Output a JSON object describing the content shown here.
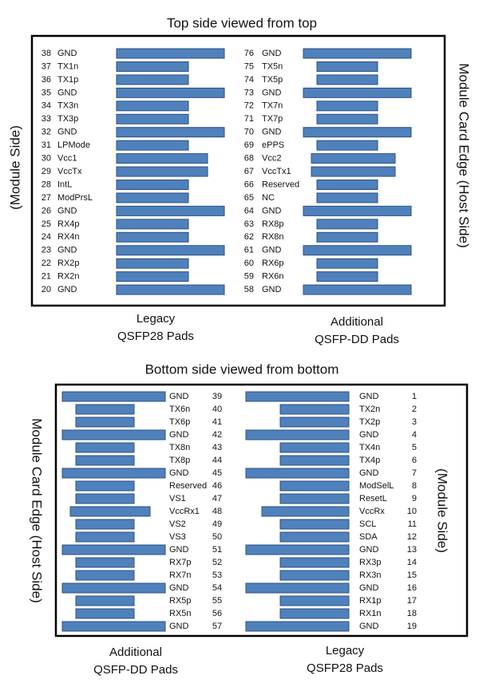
{
  "panels": [
    {
      "title": "Top side viewed from top",
      "side_labels": [
        "(Module Side)",
        "Module Card Edge (Host Side)"
      ],
      "columns": [
        {
          "caption": [
            "Legacy",
            "QSFP28 Pads"
          ],
          "pads": [
            {
              "number": 38,
              "name": "GND"
            },
            {
              "number": 37,
              "name": "TX1n"
            },
            {
              "number": 36,
              "name": "TX1p"
            },
            {
              "number": 35,
              "name": "GND"
            },
            {
              "number": 34,
              "name": "TX3n"
            },
            {
              "number": 33,
              "name": "TX3p"
            },
            {
              "number": 32,
              "name": "GND"
            },
            {
              "number": 31,
              "name": "LPMode"
            },
            {
              "number": 30,
              "name": "Vcc1"
            },
            {
              "number": 29,
              "name": "VccTx"
            },
            {
              "number": 28,
              "name": "IntL"
            },
            {
              "number": 27,
              "name": "ModPrsL"
            },
            {
              "number": 26,
              "name": "GND"
            },
            {
              "number": 25,
              "name": "RX4p"
            },
            {
              "number": 24,
              "name": "RX4n"
            },
            {
              "number": 23,
              "name": "GND"
            },
            {
              "number": 22,
              "name": "RX2p"
            },
            {
              "number": 21,
              "name": "RX2n"
            },
            {
              "number": 20,
              "name": "GND"
            }
          ]
        },
        {
          "caption": [
            "Additional",
            "QSFP-DD Pads"
          ],
          "pads": [
            {
              "number": 76,
              "name": "GND"
            },
            {
              "number": 75,
              "name": "TX5n"
            },
            {
              "number": 74,
              "name": "TX5p"
            },
            {
              "number": 73,
              "name": "GND"
            },
            {
              "number": 72,
              "name": "TX7n"
            },
            {
              "number": 71,
              "name": "TX7p"
            },
            {
              "number": 70,
              "name": "GND"
            },
            {
              "number": 69,
              "name": "ePPS"
            },
            {
              "number": 68,
              "name": "Vcc2"
            },
            {
              "number": 67,
              "name": "VccTx1"
            },
            {
              "number": 66,
              "name": "Reserved"
            },
            {
              "number": 65,
              "name": "NC"
            },
            {
              "number": 64,
              "name": "GND"
            },
            {
              "number": 63,
              "name": "RX8p"
            },
            {
              "number": 62,
              "name": "RX8n"
            },
            {
              "number": 61,
              "name": "GND"
            },
            {
              "number": 60,
              "name": "RX6p"
            },
            {
              "number": 59,
              "name": "RX6n"
            },
            {
              "number": 58,
              "name": "GND"
            }
          ]
        }
      ]
    },
    {
      "title": "Bottom side viewed from bottom",
      "side_labels": [
        "Module Card Edge (Host Side)",
        "(Module Side)"
      ],
      "columns": [
        {
          "caption": [
            "Additional",
            "QSFP-DD Pads"
          ],
          "pads": [
            {
              "number": 39,
              "name": "GND"
            },
            {
              "number": 40,
              "name": "TX6n"
            },
            {
              "number": 41,
              "name": "TX6p"
            },
            {
              "number": 42,
              "name": "GND"
            },
            {
              "number": 43,
              "name": "TX8n"
            },
            {
              "number": 44,
              "name": "TX8p"
            },
            {
              "number": 45,
              "name": "GND"
            },
            {
              "number": 46,
              "name": "Reserved"
            },
            {
              "number": 47,
              "name": "VS1"
            },
            {
              "number": 48,
              "name": "VccRx1"
            },
            {
              "number": 49,
              "name": "VS2"
            },
            {
              "number": 50,
              "name": "VS3"
            },
            {
              "number": 51,
              "name": "GND"
            },
            {
              "number": 52,
              "name": "RX7p"
            },
            {
              "number": 53,
              "name": "RX7n"
            },
            {
              "number": 54,
              "name": "GND"
            },
            {
              "number": 55,
              "name": "RX5p"
            },
            {
              "number": 56,
              "name": "RX5n"
            },
            {
              "number": 57,
              "name": "GND"
            }
          ]
        },
        {
          "caption": [
            "Legacy",
            "QSFP28 Pads"
          ],
          "pads": [
            {
              "number": 1,
              "name": "GND"
            },
            {
              "number": 2,
              "name": "TX2n"
            },
            {
              "number": 3,
              "name": "TX2p"
            },
            {
              "number": 4,
              "name": "GND"
            },
            {
              "number": 5,
              "name": "TX4n"
            },
            {
              "number": 6,
              "name": "TX4p"
            },
            {
              "number": 7,
              "name": "GND"
            },
            {
              "number": 8,
              "name": "ModSelL"
            },
            {
              "number": 9,
              "name": "ResetL"
            },
            {
              "number": 10,
              "name": "VccRx"
            },
            {
              "number": 11,
              "name": "SCL"
            },
            {
              "number": 12,
              "name": "SDA"
            },
            {
              "number": 13,
              "name": "GND"
            },
            {
              "number": 14,
              "name": "RX3p"
            },
            {
              "number": 15,
              "name": "RX3n"
            },
            {
              "number": 16,
              "name": "GND"
            },
            {
              "number": 17,
              "name": "RX1p"
            },
            {
              "number": 18,
              "name": "RX1n"
            },
            {
              "number": 19,
              "name": "GND"
            }
          ]
        }
      ]
    }
  ]
}
